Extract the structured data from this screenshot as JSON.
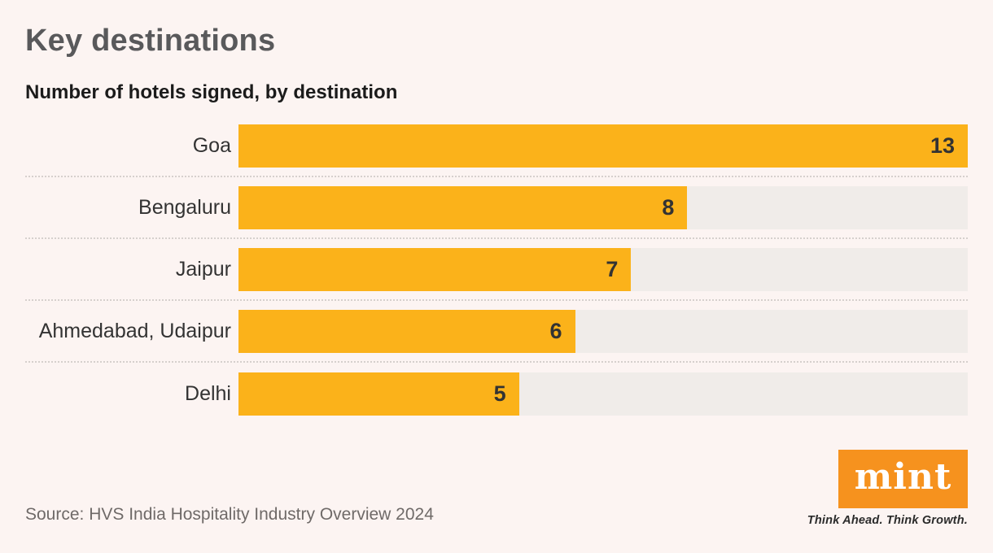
{
  "page": {
    "title": "Key destinations",
    "subtitle": "Number of hotels signed, by destination",
    "source": "Source: HVS India Hospitality Industry Overview 2024"
  },
  "chart_data": {
    "type": "bar",
    "orientation": "horizontal",
    "title": "Key destinations",
    "subtitle": "Number of hotels signed, by destination",
    "categories": [
      "Goa",
      "Bengaluru",
      "Jaipur",
      "Ahmedabad, Udaipur",
      "Delhi"
    ],
    "values": [
      13,
      8,
      7,
      6,
      5
    ],
    "xlim": [
      0,
      13
    ],
    "value_labels_shown": true,
    "grid": "dotted row separators",
    "legend": "none"
  },
  "branding": {
    "logo_text": "mint",
    "tagline": "Think Ahead. Think Growth."
  },
  "colors": {
    "background": "#FCF4F2",
    "bar": "#FBB21A",
    "track": "#F0ECE9",
    "separator": "#D6D0CD",
    "title": "#59595B",
    "subtitle": "#1B1B1B",
    "label": "#333333",
    "value": "#333333",
    "source": "#6F6A68",
    "logo": "#F6921E"
  }
}
